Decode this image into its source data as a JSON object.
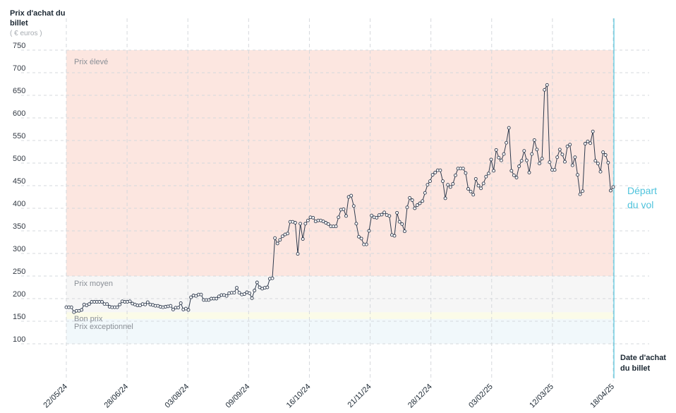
{
  "chart_data": {
    "type": "line",
    "ylabel": "Prix d'achat du billet",
    "yunit": "( € euros )",
    "xlabel": "Date d'achat du billet",
    "ylim": [
      50,
      800
    ],
    "yticks": [
      100,
      150,
      200,
      250,
      300,
      350,
      400,
      450,
      500,
      550,
      600,
      650,
      700,
      750
    ],
    "x_tick_labels": [
      "22/05/24",
      "28/06/24",
      "03/08/24",
      "09/09/24",
      "16/10/24",
      "21/11/24",
      "28/12/24",
      "03/02/25",
      "12/03/25",
      "18/04/25"
    ],
    "grid": true,
    "bands": [
      {
        "label": "Prix exceptionnel",
        "from": 100,
        "to": 155,
        "color": "#f1f8fb"
      },
      {
        "label": "Bon prix",
        "from": 155,
        "to": 170,
        "color": "#fbfbe8"
      },
      {
        "label": "Prix moyen",
        "from": 170,
        "to": 250,
        "color": "#f6f6f6"
      },
      {
        "label": "Prix élevé",
        "from": 250,
        "to": 750,
        "color": "#fce6e0"
      }
    ],
    "marker_label": "Départ du vol",
    "series": [
      {
        "color": "#2e3a4d",
        "values": [
          181,
          181,
          181,
          170,
          173,
          173,
          175,
          187,
          185,
          188,
          193,
          193,
          193,
          193,
          193,
          188,
          188,
          182,
          181,
          181,
          181,
          187,
          194,
          193,
          193,
          194,
          189,
          187,
          185,
          185,
          188,
          187,
          192,
          187,
          186,
          184,
          184,
          182,
          181,
          182,
          183,
          184,
          176,
          180,
          180,
          190,
          176,
          178,
          175,
          203,
          207,
          206,
          209,
          209,
          197,
          197,
          197,
          200,
          200,
          200,
          205,
          208,
          208,
          206,
          212,
          213,
          213,
          224,
          213,
          209,
          210,
          214,
          212,
          201,
          218,
          236,
          225,
          222,
          224,
          225,
          244,
          245,
          334,
          322,
          330,
          338,
          342,
          344,
          370,
          370,
          368,
          299,
          366,
          332,
          366,
          373,
          380,
          379,
          371,
          373,
          373,
          371,
          368,
          365,
          360,
          360,
          360,
          380,
          397,
          398,
          383,
          425,
          428,
          405,
          366,
          337,
          333,
          320,
          320,
          350,
          384,
          380,
          379,
          385,
          386,
          391,
          385,
          383,
          341,
          339,
          390,
          370,
          365,
          349,
          402,
          423,
          418,
          400,
          407,
          411,
          416,
          434,
          452,
          460,
          474,
          479,
          484,
          484,
          460,
          422,
          452,
          447,
          454,
          473,
          488,
          488,
          488,
          478,
          443,
          437,
          430,
          465,
          450,
          444,
          455,
          470,
          477,
          508,
          483,
          529,
          512,
          506,
          520,
          545,
          578,
          483,
          473,
          468,
          493,
          505,
          527,
          506,
          479,
          520,
          551,
          530,
          499,
          510,
          662,
          673,
          502,
          485,
          485,
          513,
          530,
          519,
          503,
          537,
          541,
          495,
          513,
          474,
          431,
          438,
          543,
          548,
          544,
          570,
          505,
          499,
          481,
          524,
          518,
          501,
          439,
          447
        ]
      }
    ]
  }
}
